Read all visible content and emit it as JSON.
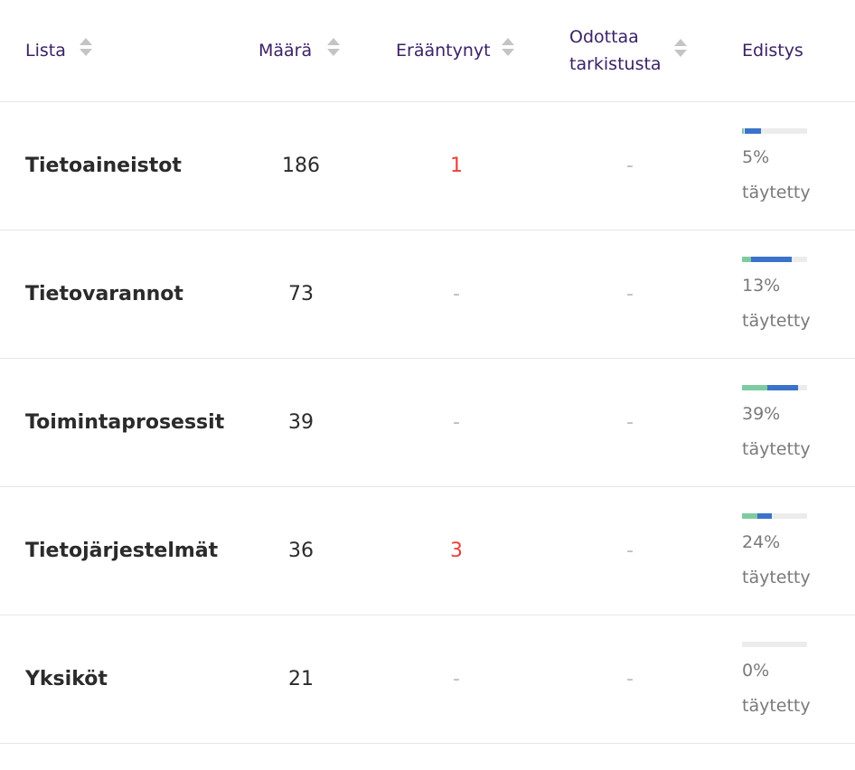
{
  "columns": {
    "lista": "Lista",
    "maara": "Määrä",
    "erääntyneet": "Erääntynyt",
    "odottaa_1": "Odottaa",
    "odottaa_2": "tarkistusta",
    "edistys": "Edistys"
  },
  "rows": [
    {
      "name": "Tietoaineistot",
      "count": "186",
      "overdue": "1",
      "pending": "-",
      "percent": "5%",
      "filled_label": "täytetty",
      "progress_green": 0.05,
      "progress_blue": 0.25
    },
    {
      "name": "Tietovarannot",
      "count": "73",
      "overdue": "-",
      "pending": "-",
      "percent": "13%",
      "filled_label": "täytetty",
      "progress_green": 0.13,
      "progress_blue": 0.62
    },
    {
      "name": "Toimintaprosessit",
      "count": "39",
      "overdue": "-",
      "pending": "-",
      "percent": "39%",
      "filled_label": "täytetty",
      "progress_green": 0.39,
      "progress_blue": 0.47
    },
    {
      "name": "Tietojärjestelmät",
      "count": "36",
      "overdue": "3",
      "pending": "-",
      "percent": "24%",
      "filled_label": "täytetty",
      "progress_green": 0.24,
      "progress_blue": 0.22
    },
    {
      "name": "Yksiköt",
      "count": "21",
      "overdue": "-",
      "pending": "-",
      "percent": "0%",
      "filled_label": "täytetty",
      "progress_green": 0.0,
      "progress_blue": 0.0
    }
  ],
  "colors": {
    "header_text": "#3b2266",
    "overdue_red": "#e8413a",
    "progress_green": "#7fcaa0",
    "progress_blue": "#3a73c9",
    "progress_track": "#ececec"
  },
  "icons": {
    "sort": "sort-arrows-icon"
  }
}
